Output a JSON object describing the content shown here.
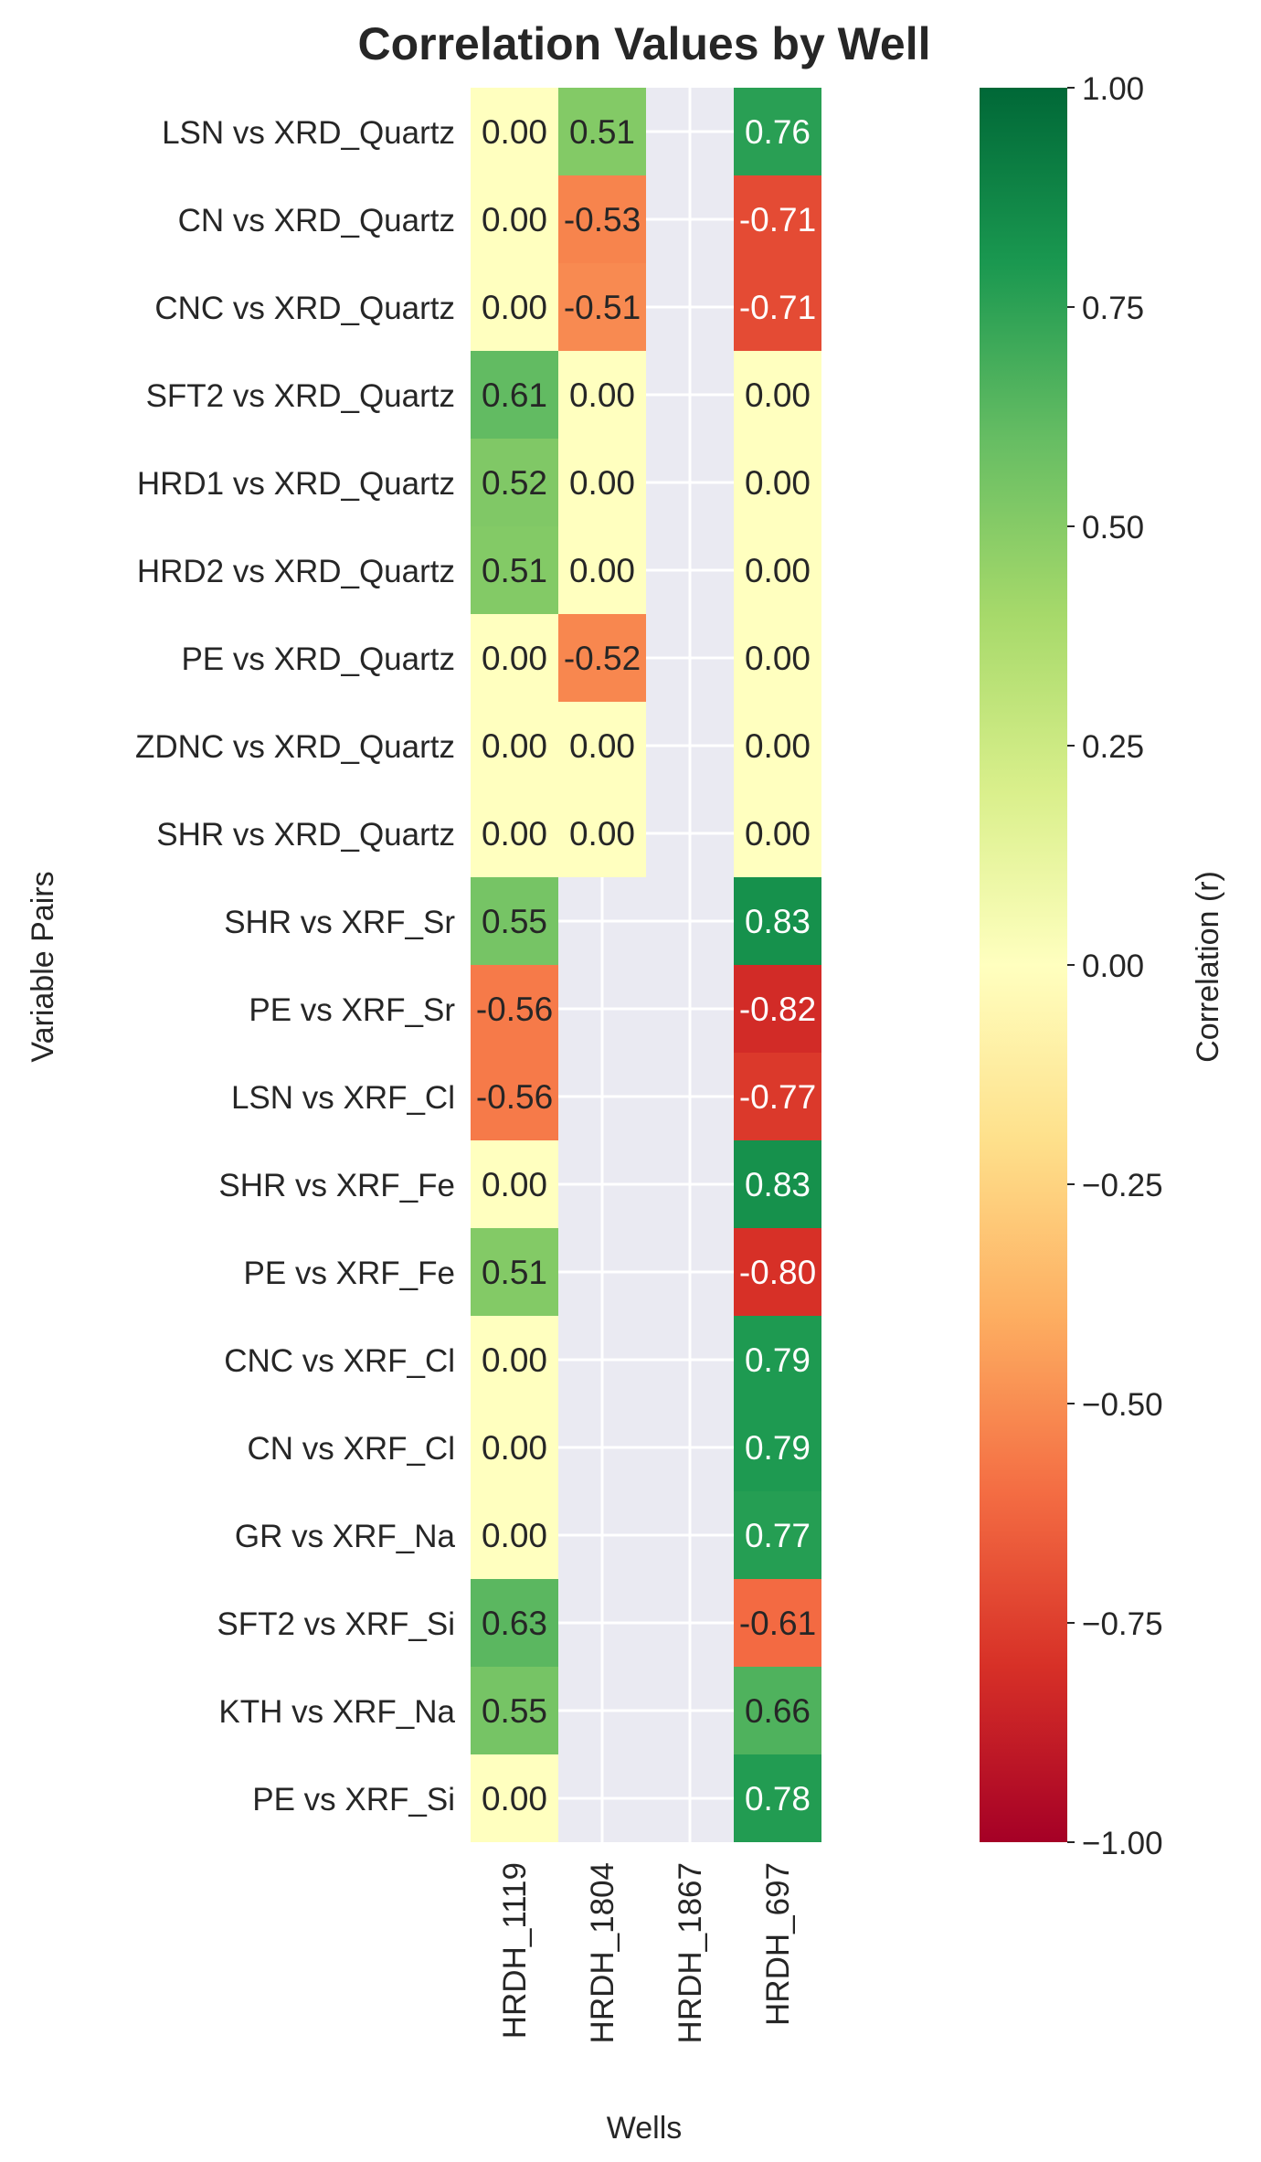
{
  "chart_data": {
    "type": "heatmap",
    "title": "Correlation Values by Well",
    "xlabel": "Wells",
    "ylabel": "Variable Pairs",
    "colorbar_label": "Correlation (r)",
    "colormap": "RdYlGn",
    "vmin": -1.0,
    "vmax": 1.0,
    "colorbar_ticks": [
      "1.00",
      "0.75",
      "0.50",
      "0.25",
      "0.00",
      "−0.25",
      "−0.50",
      "−0.75",
      "−1.00"
    ],
    "colorbar_tick_values": [
      1.0,
      0.75,
      0.5,
      0.25,
      0.0,
      -0.25,
      -0.5,
      -0.75,
      -1.0
    ],
    "columns": [
      "HRDH_1119",
      "HRDH_1804",
      "HRDH_1867",
      "HRDH_697"
    ],
    "rows": [
      "LSN vs XRD_Quartz",
      "CN vs XRD_Quartz",
      "CNC vs XRD_Quartz",
      "SFT2 vs XRD_Quartz",
      "HRD1 vs XRD_Quartz",
      "HRD2 vs XRD_Quartz",
      "PE vs XRD_Quartz",
      "ZDNC vs XRD_Quartz",
      "SHR vs XRD_Quartz",
      "SHR vs XRF_Sr",
      "PE vs XRF_Sr",
      "LSN vs XRF_Cl",
      "SHR vs XRF_Fe",
      "PE vs XRF_Fe",
      "CNC vs XRF_Cl",
      "CN vs XRF_Cl",
      "GR vs XRF_Na",
      "SFT2 vs XRF_Si",
      "KTH vs XRF_Na",
      "PE vs XRF_Si"
    ],
    "values": [
      [
        0.0,
        0.51,
        null,
        0.76
      ],
      [
        0.0,
        -0.53,
        null,
        -0.71
      ],
      [
        0.0,
        -0.51,
        null,
        -0.71
      ],
      [
        0.61,
        0.0,
        null,
        0.0
      ],
      [
        0.52,
        0.0,
        null,
        0.0
      ],
      [
        0.51,
        0.0,
        null,
        0.0
      ],
      [
        0.0,
        -0.52,
        null,
        0.0
      ],
      [
        0.0,
        0.0,
        null,
        0.0
      ],
      [
        0.0,
        0.0,
        null,
        0.0
      ],
      [
        0.55,
        null,
        null,
        0.83
      ],
      [
        -0.56,
        null,
        null,
        -0.82
      ],
      [
        -0.56,
        null,
        null,
        -0.77
      ],
      [
        0.0,
        null,
        null,
        0.83
      ],
      [
        0.51,
        null,
        null,
        -0.8
      ],
      [
        0.0,
        null,
        null,
        0.79
      ],
      [
        0.0,
        null,
        null,
        0.79
      ],
      [
        0.0,
        null,
        null,
        0.77
      ],
      [
        0.63,
        null,
        null,
        -0.61
      ],
      [
        0.55,
        null,
        null,
        0.66
      ],
      [
        0.0,
        null,
        null,
        0.78
      ]
    ],
    "grid": true,
    "background_color": "#eaeaf2"
  }
}
